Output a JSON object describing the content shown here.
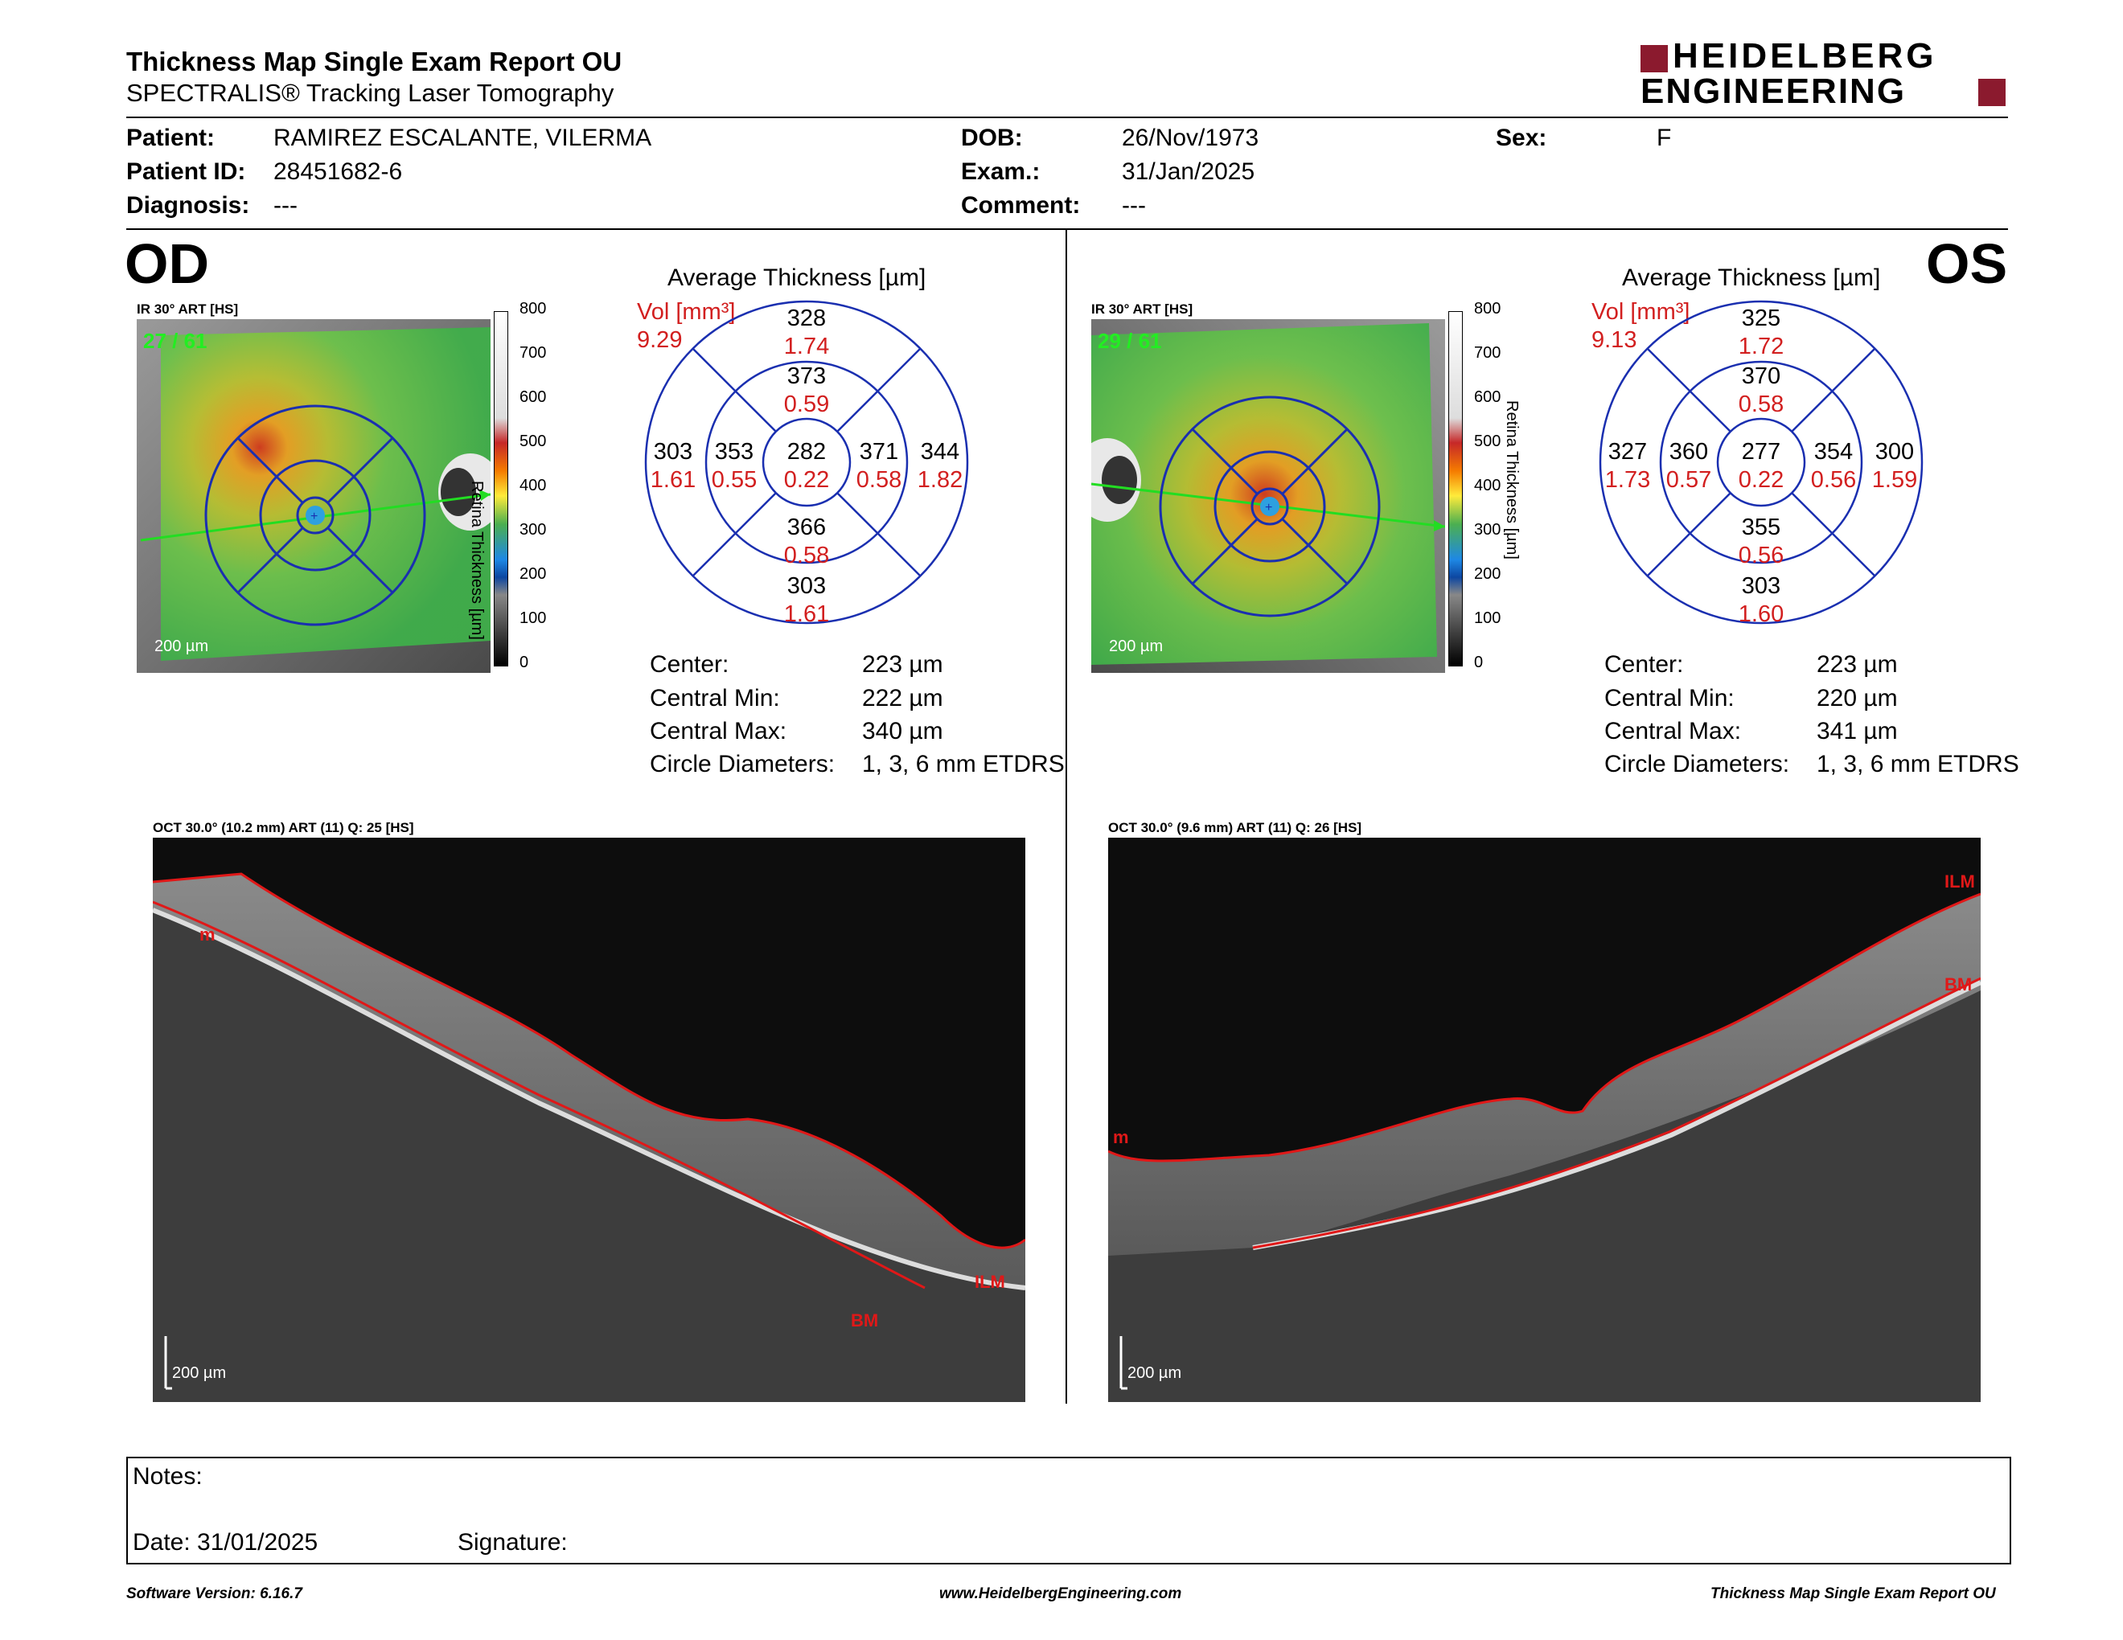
{
  "report": {
    "title": "Thickness Map Single Exam Report OU",
    "subtitle": "SPECTRALIS® Tracking Laser Tomography",
    "logo_top": "HEIDELBERG",
    "logo_bottom": "ENGINEERING",
    "brand_color": "#8b1a2e"
  },
  "patient": {
    "patient_label": "Patient:",
    "patient_value": "RAMIREZ ESCALANTE, VILERMA",
    "id_label": "Patient ID:",
    "id_value": "28451682-6",
    "diagnosis_label": "Diagnosis:",
    "diagnosis_value": "---",
    "dob_label": "DOB:",
    "dob_value": "26/Nov/1973",
    "exam_label": "Exam.:",
    "exam_value": "31/Jan/2025",
    "comment_label": "Comment:",
    "comment_value": "---",
    "sex_label": "Sex:",
    "sex_value": "F"
  },
  "od": {
    "eye": "OD",
    "ir_label": "IR 30° ART [HS]",
    "frames": "27 / 61",
    "scale": "200 µm",
    "avg_title": "Average Thickness [µm]",
    "vol_label": "Vol [mm³]",
    "vol_total": "9.29",
    "grid": {
      "center_t": "282",
      "center_v": "0.22",
      "inner_sup_t": "373",
      "inner_sup_v": "0.59",
      "inner_inf_t": "366",
      "inner_inf_v": "0.58",
      "inner_left_t": "353",
      "inner_left_v": "0.55",
      "inner_right_t": "371",
      "inner_right_v": "0.58",
      "outer_sup_t": "328",
      "outer_sup_v": "1.74",
      "outer_inf_t": "303",
      "outer_inf_v": "1.61",
      "outer_left_t": "303",
      "outer_left_v": "1.61",
      "outer_right_t": "344",
      "outer_right_v": "1.82"
    },
    "stats": {
      "center_label": "Center:",
      "center_value": "223 µm",
      "min_label": "Central Min:",
      "min_value": "222 µm",
      "max_label": "Central Max:",
      "max_value": "340 µm",
      "diam_label": "Circle Diameters:",
      "diam_value": "1, 3, 6 mm ETDRS"
    },
    "oct_label": "OCT 30.0° (10.2 mm) ART (11) Q: 25 [HS]",
    "oct_scale": "200 µm",
    "layer_ilm": "ILM",
    "layer_bm": "BM",
    "layer_m": "m"
  },
  "os": {
    "eye": "OS",
    "ir_label": "IR 30° ART [HS]",
    "frames": "29 / 61",
    "scale": "200 µm",
    "avg_title": "Average Thickness [µm]",
    "vol_label": "Vol [mm³]",
    "vol_total": "9.13",
    "grid": {
      "center_t": "277",
      "center_v": "0.22",
      "inner_sup_t": "370",
      "inner_sup_v": "0.58",
      "inner_inf_t": "355",
      "inner_inf_v": "0.56",
      "inner_left_t": "360",
      "inner_left_v": "0.57",
      "inner_right_t": "354",
      "inner_right_v": "0.56",
      "outer_sup_t": "325",
      "outer_sup_v": "1.72",
      "outer_inf_t": "303",
      "outer_inf_v": "1.60",
      "outer_left_t": "327",
      "outer_left_v": "1.73",
      "outer_right_t": "300",
      "outer_right_v": "1.59"
    },
    "stats": {
      "center_label": "Center:",
      "center_value": "223 µm",
      "min_label": "Central Min:",
      "min_value": "220 µm",
      "max_label": "Central Max:",
      "max_value": "341 µm",
      "diam_label": "Circle Diameters:",
      "diam_value": "1, 3, 6 mm ETDRS"
    },
    "oct_label": "OCT 30.0° (9.6 mm) ART (11) Q: 26 [HS]",
    "oct_scale": "200 µm",
    "layer_ilm": "ILM",
    "layer_bm": "BM",
    "layer_m": "m"
  },
  "colorbar": {
    "ticks": [
      "800",
      "700",
      "600",
      "500",
      "400",
      "300",
      "200",
      "100",
      "0"
    ],
    "title": "Retina Thickness [µm]"
  },
  "notes": {
    "notes_label": "Notes:",
    "date_label": "Date: 31/01/2025",
    "signature_label": "Signature:"
  },
  "footer": {
    "software": "Software Version: 6.16.7",
    "website": "www.HeidelbergEngineering.com",
    "report_name": "Thickness Map Single Exam Report OU"
  }
}
